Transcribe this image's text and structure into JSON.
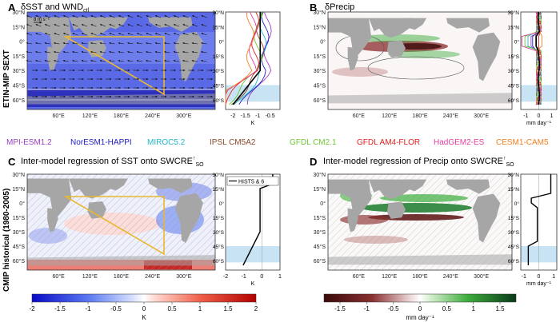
{
  "row_labels": {
    "top": "ETIN-MIP SEXT",
    "bottom": "CMIP historical (1980-2005)"
  },
  "model_legend": [
    {
      "name": "MPI-ESM1.2",
      "color": "#9b3fc4"
    },
    {
      "name": "NorESM1-HAPPI",
      "color": "#2020c8"
    },
    {
      "name": "MIROC5.2",
      "color": "#22b8c8"
    },
    {
      "name": "IPSL CM5A2",
      "color": "#8a4a2a"
    },
    {
      "name": "GFDL CM2.1",
      "color": "#6cc832"
    },
    {
      "name": "GFDL AM4-FLOR",
      "color": "#e02020"
    },
    {
      "name": "HadGEM2-ES",
      "color": "#e040a0"
    },
    {
      "name": "CESM1-CAM5",
      "color": "#f08020"
    }
  ],
  "colors": {
    "land": "#a6a6a6",
    "box": "#e8b830",
    "band": "#c8e4f4"
  },
  "lat_ticks": [
    "30°N",
    "15°N",
    "0°",
    "15°S",
    "30°S",
    "45°S",
    "60°S"
  ],
  "lon_ticks": [
    "60°E",
    "120°E",
    "180°E",
    "240°E",
    "300°E"
  ],
  "chart_data": [
    {
      "panel": "A",
      "type": "heatmap",
      "title": "δSST and WND",
      "title_sub": "ctl",
      "scale_label": "8 m s⁻¹",
      "colormap": "blue-white-red",
      "field": "SST change, mostly negative",
      "has_wind_vectors": true,
      "has_yellow_triangle": true
    },
    {
      "panel": "A-profile",
      "type": "line",
      "xlabel": "K",
      "xticks": [
        -2,
        -1.5,
        -1,
        -0.5
      ],
      "xlim": [
        -2.3,
        -0.1
      ],
      "ylim": [
        -70,
        30
      ],
      "note": "zonal-mean δSST per model (colors per model legend), multi-model mean in black"
    },
    {
      "panel": "B",
      "type": "heatmap",
      "title": "δPrecip",
      "colormap": "brown-white-green",
      "field": "precipitation change, drying along equatorial Pacific"
    },
    {
      "panel": "B-profile",
      "type": "line",
      "xlabel": "mm day⁻¹",
      "xticks": [
        -1,
        0,
        1
      ],
      "xlim": [
        -1.4,
        1.4
      ],
      "ylim": [
        -70,
        30
      ]
    },
    {
      "panel": "C",
      "type": "heatmap",
      "title": "Inter-model regression of SST onto SWCRE",
      "title_sup": "↑",
      "title_sub": "SO",
      "has_yellow_triangle": true,
      "hatched": true
    },
    {
      "panel": "C-profile",
      "type": "line",
      "legend": "HIST5 & 6",
      "xlabel": "K",
      "xticks": [
        -2,
        -1,
        0,
        1
      ],
      "xlim": [
        -2,
        1
      ],
      "ylim": [
        -70,
        30
      ]
    },
    {
      "panel": "D",
      "type": "heatmap",
      "title": "Inter-model regression of Precip onto SWCRE",
      "title_sup": "↑",
      "title_sub": "SO",
      "hatched": true
    },
    {
      "panel": "D-profile",
      "type": "line",
      "xlabel": "mm day⁻¹",
      "xticks": [
        -1,
        0,
        1
      ],
      "xlim": [
        -1.2,
        1.2
      ],
      "ylim": [
        -70,
        30
      ]
    },
    {
      "panel": "colorbar-K",
      "type": "colorbar",
      "label": "K",
      "ticks": [
        -2,
        -1.5,
        -1,
        -0.5,
        0,
        0.5,
        1,
        1.5,
        2
      ],
      "range": [
        -2,
        2
      ]
    },
    {
      "panel": "colorbar-precip",
      "type": "colorbar",
      "label": "mm day⁻¹",
      "ticks": [
        -1.5,
        -1,
        -0.5,
        0,
        0.5,
        1,
        1.5
      ],
      "range": [
        -1.8,
        1.8
      ]
    }
  ]
}
